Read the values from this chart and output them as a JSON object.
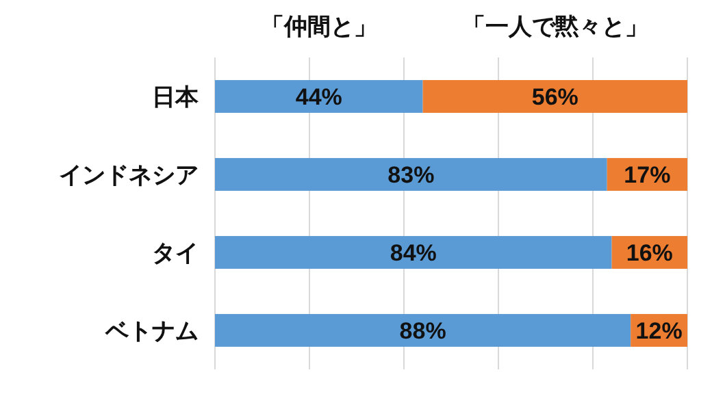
{
  "chart_data": {
    "type": "bar",
    "orientation": "horizontal",
    "stacked": true,
    "categories": [
      "日本",
      "インドネシア",
      "タイ",
      "ベトナム"
    ],
    "series": [
      {
        "name": "「仲間と」",
        "color": "#5b9bd5",
        "values": [
          44,
          83,
          84,
          88
        ],
        "value_labels": [
          "44%",
          "83%",
          "84%",
          "88%"
        ]
      },
      {
        "name": "「一人で黙々と」",
        "color": "#ed7d31",
        "values": [
          56,
          17,
          16,
          12
        ],
        "value_labels": [
          "56%",
          "17%",
          "16%",
          "12%"
        ]
      }
    ],
    "xlim": [
      0,
      100
    ],
    "xticks": [
      {
        "value": 0,
        "label": null
      },
      {
        "value": 20,
        "label": null
      },
      {
        "value": 40,
        "label": null
      },
      {
        "value": 60,
        "label": null
      },
      {
        "value": 80,
        "label": null
      },
      {
        "value": 100,
        "label": null
      }
    ],
    "grid": "x",
    "tick_labels": "y",
    "legend": "top"
  }
}
